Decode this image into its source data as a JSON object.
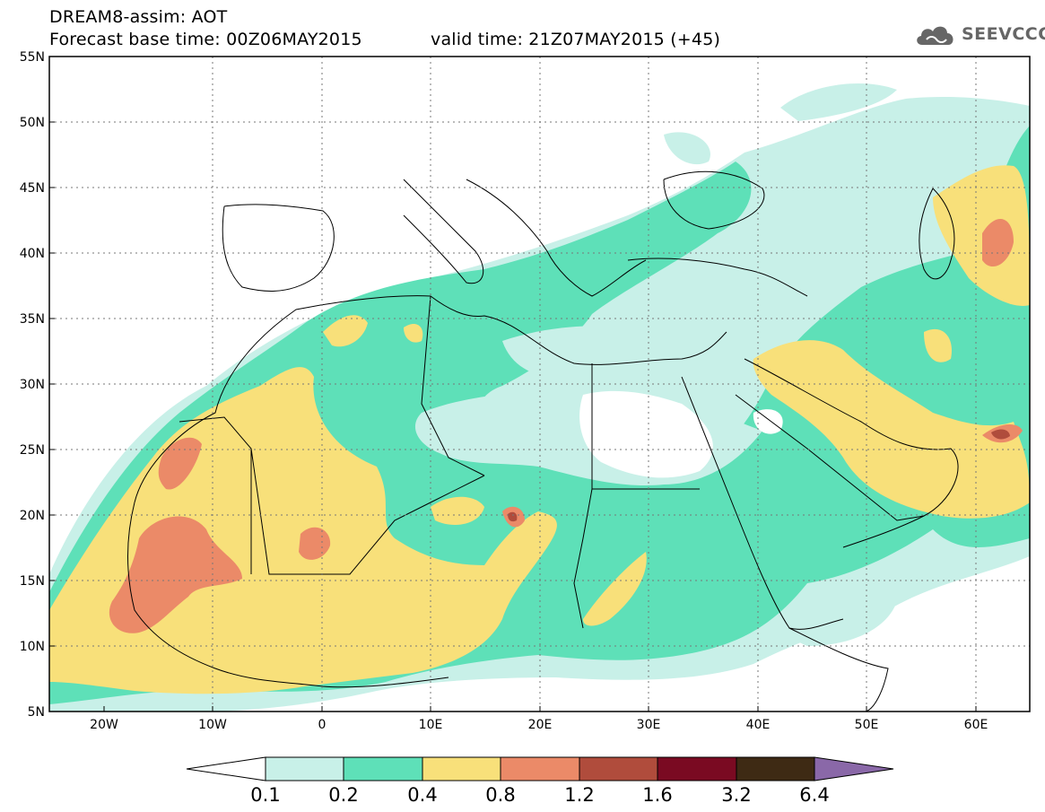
{
  "header": {
    "title_line1": "DREAM8-assim: AOT",
    "title_line2": "Forecast base time: 00Z06MAY2015",
    "valid_time": "valid time: 21Z07MAY2015 (+45)",
    "logo_text": "SEEVCCC"
  },
  "map": {
    "lat_labels": [
      "55N",
      "50N",
      "45N",
      "40N",
      "35N",
      "30N",
      "25N",
      "20N",
      "15N",
      "10N",
      "5N"
    ],
    "lon_labels": [
      "20W",
      "10W",
      "0",
      "10E",
      "20E",
      "30E",
      "40E",
      "50E",
      "60E"
    ],
    "grid": true,
    "domain": {
      "lon_min": -25,
      "lon_max": 65,
      "lat_min": 5,
      "lat_max": 55
    }
  },
  "legend": {
    "levels": [
      "0.1",
      "0.2",
      "0.4",
      "0.8",
      "1.2",
      "1.6",
      "3.2",
      "6.4"
    ],
    "colors": [
      "#ffffff",
      "#c8f0e8",
      "#5ee0b8",
      "#f8e07a",
      "#eb8a68",
      "#b04c3c",
      "#7a0a22",
      "#3e2a14",
      "#8a68a8"
    ]
  }
}
